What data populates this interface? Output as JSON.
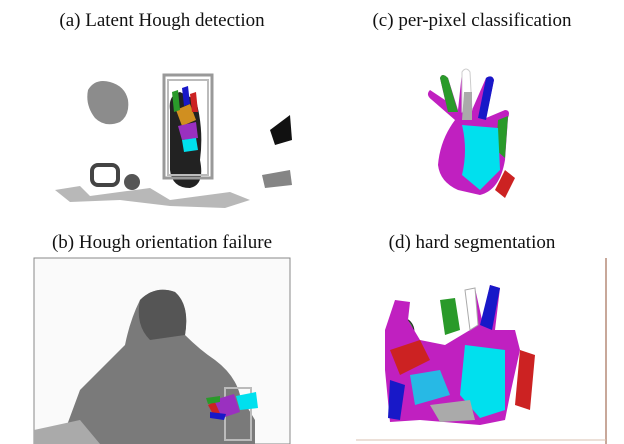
{
  "panels": [
    {
      "caption": "(a) Latent Hough detection"
    },
    {
      "caption": "(c) per-pixel classification"
    },
    {
      "caption": "(b) Hough orientation failure"
    },
    {
      "caption": "(d) hard segmentation"
    }
  ]
}
